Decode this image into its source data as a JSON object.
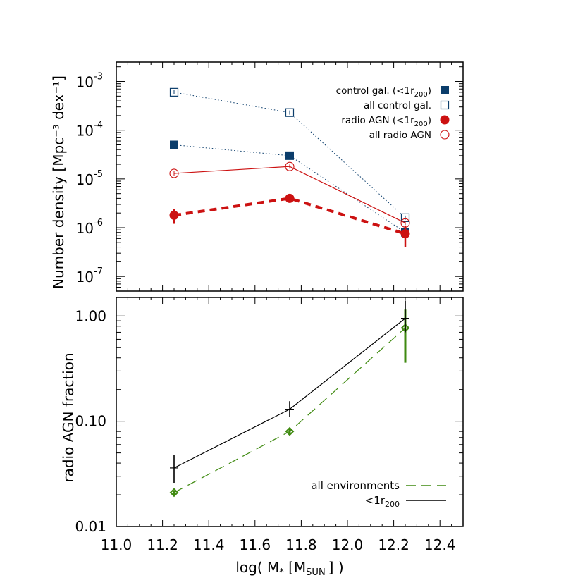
{
  "chart_data": [
    {
      "type": "line",
      "panel": "top",
      "ylabel": "Number density [Mpc⁻³ dex⁻¹]",
      "yscale": "log",
      "ylim": [
        5e-08,
        0.0025
      ],
      "xlim": [
        11.0,
        12.5
      ],
      "y_ticks": [
        {
          "value": 1e-07,
          "mantissa": "10",
          "exp": "-7"
        },
        {
          "value": 1e-06,
          "mantissa": "10",
          "exp": "-6"
        },
        {
          "value": 1e-05,
          "mantissa": "10",
          "exp": "-5"
        },
        {
          "value": 0.0001,
          "mantissa": "10",
          "exp": "-4"
        },
        {
          "value": 0.001,
          "mantissa": "10",
          "exp": "-3"
        }
      ],
      "legend_position": "top-right",
      "series": [
        {
          "name": "control gal. (<1r200)",
          "legend_base": "control gal. (<1r",
          "legend_sub": "200",
          "legend_tail": ")",
          "marker": "square-filled",
          "color": "#0b3d6b",
          "line": "dotted",
          "x": [
            11.25,
            11.75,
            12.25
          ],
          "y": [
            5e-05,
            3e-05,
            8e-07
          ]
        },
        {
          "name": "all control gal.",
          "legend_base": "all control gal.",
          "legend_sub": "",
          "legend_tail": "",
          "marker": "square-open",
          "color": "#0b3d6b",
          "line": "dotted",
          "x": [
            11.25,
            11.75,
            12.25
          ],
          "y": [
            0.0006,
            0.00023,
            1.6e-06
          ]
        },
        {
          "name": "radio AGN (<1r200)",
          "legend_base": "radio AGN (<1r",
          "legend_sub": "200",
          "legend_tail": ")",
          "marker": "circle-filled",
          "color": "#cc1111",
          "line": "dashed-thick",
          "x": [
            11.25,
            11.75,
            12.25
          ],
          "y": [
            1.8e-06,
            4e-06,
            7.5e-07
          ],
          "yerr_low": [
            1.2e-06,
            3.4e-06,
            4e-07
          ],
          "yerr_high": [
            2.4e-06,
            4.5e-06,
            1.1e-06
          ]
        },
        {
          "name": "all radio AGN",
          "legend_base": "all radio AGN",
          "legend_sub": "",
          "legend_tail": "",
          "marker": "circle-open",
          "color": "#cc1111",
          "line": "solid",
          "x": [
            11.25,
            11.75,
            12.25
          ],
          "y": [
            1.3e-05,
            1.8e-05,
            1.25e-06
          ]
        }
      ]
    },
    {
      "type": "line",
      "panel": "bottom",
      "ylabel": "radio AGN fraction",
      "yscale": "log",
      "ylim": [
        0.01,
        1.5
      ],
      "xlim": [
        11.0,
        12.5
      ],
      "xlabel_base": "log( M",
      "xlabel_sub1": "*",
      "xlabel_mid": " [M",
      "xlabel_sub2": "SUN",
      "xlabel_tail": "] )",
      "x_ticks": [
        "11.0",
        "11.2",
        "11.4",
        "11.6",
        "11.8",
        "12.0",
        "12.2",
        "12.4"
      ],
      "y_ticks": [
        {
          "value": 0.01,
          "label": "0.01"
        },
        {
          "value": 0.1,
          "label": "0.10"
        },
        {
          "value": 1.0,
          "label": "1.00"
        }
      ],
      "legend_position": "bottom-right",
      "series": [
        {
          "name": "all environments",
          "legend_base": "all environments",
          "legend_sub": "",
          "marker": "diamond-open",
          "color": "#3f8a10",
          "line": "long-dashed",
          "x": [
            11.25,
            11.75,
            12.25
          ],
          "y": [
            0.021,
            0.08,
            0.77
          ],
          "yerr_low": [
            0.02,
            0.076,
            0.36
          ],
          "yerr_high": [
            0.022,
            0.084,
            1.15
          ]
        },
        {
          "name": "<1r200",
          "legend_base": "<1r",
          "legend_sub": "200",
          "marker": "plus",
          "color": "#000000",
          "line": "solid",
          "x": [
            11.25,
            11.75,
            12.25
          ],
          "y": [
            0.036,
            0.13,
            0.95
          ],
          "yerr_low": [
            0.026,
            0.11,
            0.7
          ],
          "yerr_high": [
            0.048,
            0.155,
            1.4
          ]
        }
      ]
    }
  ]
}
